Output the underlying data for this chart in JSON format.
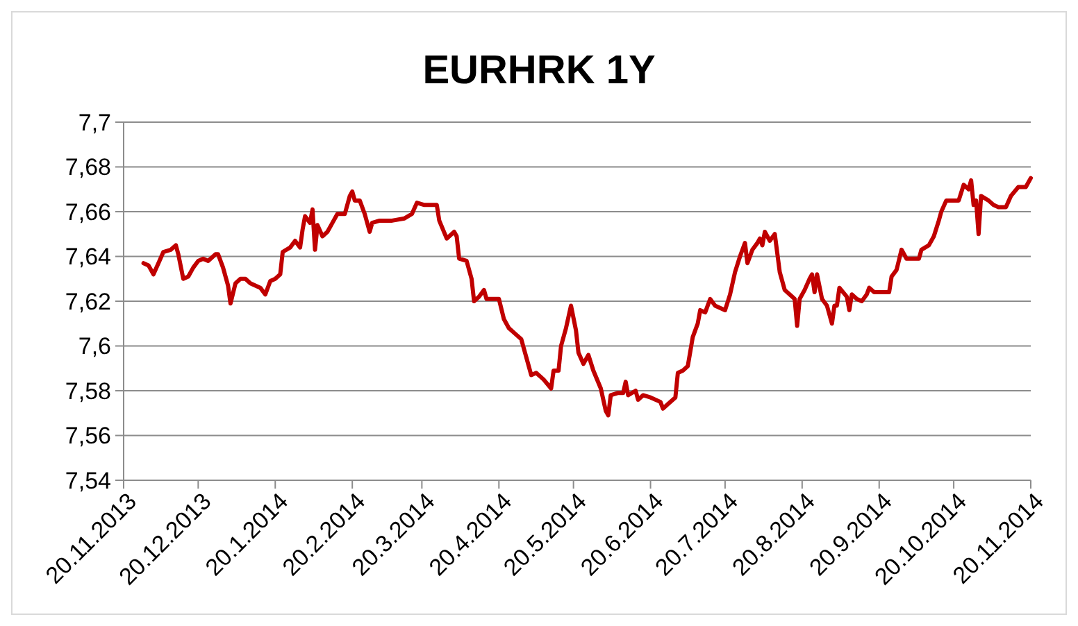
{
  "chart_data": {
    "type": "line",
    "title": "EURHRK 1Y",
    "xlim": [
      "2013-11-20",
      "2014-11-20"
    ],
    "xticks": [
      {
        "value": "2013-11-20",
        "label": "20.11.2013"
      },
      {
        "value": "2013-12-20",
        "label": "20.12.2013"
      },
      {
        "value": "2014-01-20",
        "label": "20.1.2014"
      },
      {
        "value": "2014-02-20",
        "label": "20.2.2014"
      },
      {
        "value": "2014-03-20",
        "label": "20.3.2014"
      },
      {
        "value": "2014-04-20",
        "label": "20.4.2014"
      },
      {
        "value": "2014-05-20",
        "label": "20.5.2014"
      },
      {
        "value": "2014-06-20",
        "label": "20.6.2014"
      },
      {
        "value": "2014-07-20",
        "label": "20.7.2014"
      },
      {
        "value": "2014-08-20",
        "label": "20.8.2014"
      },
      {
        "value": "2014-09-20",
        "label": "20.9.2014"
      },
      {
        "value": "2014-10-20",
        "label": "20.10.2014"
      },
      {
        "value": "2014-11-20",
        "label": "20.11.2014"
      }
    ],
    "ylim": [
      7.54,
      7.7
    ],
    "yticks": [
      {
        "value": 7.54,
        "label": "7,54"
      },
      {
        "value": 7.56,
        "label": "7,56"
      },
      {
        "value": 7.58,
        "label": "7,58"
      },
      {
        "value": 7.6,
        "label": "7,6"
      },
      {
        "value": 7.62,
        "label": "7,62"
      },
      {
        "value": 7.64,
        "label": "7,64"
      },
      {
        "value": 7.66,
        "label": "7,66"
      },
      {
        "value": 7.68,
        "label": "7,68"
      },
      {
        "value": 7.7,
        "label": "7,7"
      }
    ],
    "grid": "y",
    "marker": "none",
    "line_style": "solid",
    "series": [
      {
        "color": "#c00000",
        "x": [
          "2013-11-28",
          "2013-11-30",
          "2013-12-02",
          "2013-12-04",
          "2013-12-06",
          "2013-12-09",
          "2013-12-11",
          "2013-12-12",
          "2013-12-14",
          "2013-12-16",
          "2013-12-18",
          "2013-12-20",
          "2013-12-22",
          "2013-12-24",
          "2013-12-27",
          "2013-12-28",
          "2013-12-30",
          "2014-01-01",
          "2014-01-02",
          "2014-01-04",
          "2014-01-06",
          "2014-01-08",
          "2014-01-10",
          "2014-01-14",
          "2014-01-16",
          "2014-01-18",
          "2014-01-20",
          "2014-01-22",
          "2014-01-23",
          "2014-01-26",
          "2014-01-28",
          "2014-01-30",
          "2014-01-31",
          "2014-02-01",
          "2014-02-03",
          "2014-02-04",
          "2014-02-05",
          "2014-02-06",
          "2014-02-08",
          "2014-02-10",
          "2014-02-12",
          "2014-02-14",
          "2014-02-17",
          "2014-02-19",
          "2014-02-20",
          "2014-02-21",
          "2014-02-23",
          "2014-02-25",
          "2014-02-27",
          "2014-02-28",
          "2014-03-03",
          "2014-03-05",
          "2014-03-08",
          "2014-03-13",
          "2014-03-16",
          "2014-03-18",
          "2014-03-21",
          "2014-03-26",
          "2014-03-27",
          "2014-03-30",
          "2014-04-02",
          "2014-04-03",
          "2014-04-04",
          "2014-04-07",
          "2014-04-09",
          "2014-04-10",
          "2014-04-12",
          "2014-04-14",
          "2014-04-15",
          "2014-04-18",
          "2014-04-20",
          "2014-04-22",
          "2014-04-24",
          "2014-04-27",
          "2014-04-29",
          "2014-05-01",
          "2014-05-03",
          "2014-05-05",
          "2014-05-08",
          "2014-05-11",
          "2014-05-12",
          "2014-05-14",
          "2014-05-15",
          "2014-05-17",
          "2014-05-19",
          "2014-05-21",
          "2014-05-22",
          "2014-05-24",
          "2014-05-26",
          "2014-05-28",
          "2014-05-31",
          "2014-06-02",
          "2014-06-03",
          "2014-06-04",
          "2014-06-07",
          "2014-06-09",
          "2014-06-10",
          "2014-06-11",
          "2014-06-14",
          "2014-06-15",
          "2014-06-17",
          "2014-06-20",
          "2014-06-24",
          "2014-06-25",
          "2014-06-27",
          "2014-06-30",
          "2014-07-01",
          "2014-07-03",
          "2014-07-05",
          "2014-07-07",
          "2014-07-09",
          "2014-07-10",
          "2014-07-12",
          "2014-07-14",
          "2014-07-16",
          "2014-07-20",
          "2014-07-22",
          "2014-07-24",
          "2014-07-26",
          "2014-07-28",
          "2014-07-29",
          "2014-07-31",
          "2014-08-02",
          "2014-08-03",
          "2014-08-04",
          "2014-08-05",
          "2014-08-07",
          "2014-08-09",
          "2014-08-11",
          "2014-08-13",
          "2014-08-15",
          "2014-08-17",
          "2014-08-18",
          "2014-08-19",
          "2014-08-21",
          "2014-08-23",
          "2014-08-24",
          "2014-08-25",
          "2014-08-26",
          "2014-08-28",
          "2014-08-30",
          "2014-09-01",
          "2014-09-02",
          "2014-09-03",
          "2014-09-04",
          "2014-09-07",
          "2014-09-08",
          "2014-09-09",
          "2014-09-11",
          "2014-09-13",
          "2014-09-15",
          "2014-09-16",
          "2014-09-18",
          "2014-09-20",
          "2014-09-24",
          "2014-09-25",
          "2014-09-27",
          "2014-09-29",
          "2014-10-01",
          "2014-10-04",
          "2014-10-06",
          "2014-10-07",
          "2014-10-10",
          "2014-10-12",
          "2014-10-14",
          "2014-10-15",
          "2014-10-17",
          "2014-10-22",
          "2014-10-24",
          "2014-10-26",
          "2014-10-27",
          "2014-10-28",
          "2014-10-29",
          "2014-10-30",
          "2014-10-31",
          "2014-11-03",
          "2014-11-05",
          "2014-11-07",
          "2014-11-10",
          "2014-11-12",
          "2014-11-15",
          "2014-11-18",
          "2014-11-20"
        ],
        "values": [
          7.637,
          7.636,
          7.632,
          7.637,
          7.642,
          7.643,
          7.645,
          7.641,
          7.63,
          7.631,
          7.635,
          7.638,
          7.639,
          7.638,
          7.641,
          7.641,
          7.635,
          7.627,
          7.619,
          7.628,
          7.63,
          7.63,
          7.628,
          7.626,
          7.623,
          7.629,
          7.63,
          7.632,
          7.642,
          7.644,
          7.647,
          7.644,
          7.652,
          7.658,
          7.655,
          7.661,
          7.643,
          7.654,
          7.649,
          7.651,
          7.655,
          7.659,
          7.659,
          7.667,
          7.669,
          7.665,
          7.665,
          7.659,
          7.651,
          7.655,
          7.656,
          7.656,
          7.656,
          7.657,
          7.659,
          7.664,
          7.663,
          7.663,
          7.656,
          7.648,
          7.651,
          7.649,
          7.639,
          7.638,
          7.63,
          7.62,
          7.622,
          7.625,
          7.621,
          7.621,
          7.621,
          7.612,
          7.608,
          7.605,
          7.603,
          7.595,
          7.587,
          7.588,
          7.585,
          7.581,
          7.589,
          7.589,
          7.6,
          7.608,
          7.618,
          7.607,
          7.597,
          7.592,
          7.596,
          7.589,
          7.581,
          7.571,
          7.569,
          7.578,
          7.579,
          7.579,
          7.584,
          7.578,
          7.58,
          7.576,
          7.578,
          7.577,
          7.575,
          7.572,
          7.574,
          7.577,
          7.588,
          7.589,
          7.591,
          7.604,
          7.61,
          7.616,
          7.615,
          7.621,
          7.618,
          7.616,
          7.623,
          7.633,
          7.64,
          7.646,
          7.637,
          7.643,
          7.646,
          7.648,
          7.645,
          7.651,
          7.647,
          7.65,
          7.633,
          7.625,
          7.623,
          7.621,
          7.609,
          7.621,
          7.625,
          7.63,
          7.632,
          7.624,
          7.632,
          7.621,
          7.618,
          7.61,
          7.618,
          7.618,
          7.626,
          7.622,
          7.616,
          7.623,
          7.621,
          7.62,
          7.623,
          7.626,
          7.624,
          7.624,
          7.624,
          7.631,
          7.634,
          7.643,
          7.639,
          7.639,
          7.639,
          7.643,
          7.645,
          7.649,
          7.656,
          7.66,
          7.665,
          7.665,
          7.672,
          7.67,
          7.674,
          7.663,
          7.665,
          7.65,
          7.667,
          7.665,
          7.663,
          7.662,
          7.662,
          7.667,
          7.671,
          7.671,
          7.675
        ]
      }
    ]
  }
}
